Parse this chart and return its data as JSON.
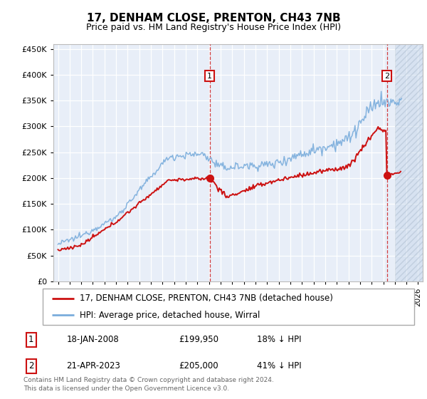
{
  "title": "17, DENHAM CLOSE, PRENTON, CH43 7NB",
  "subtitle": "Price paid vs. HM Land Registry's House Price Index (HPI)",
  "footer": "Contains HM Land Registry data © Crown copyright and database right 2024.\nThis data is licensed under the Open Government Licence v3.0.",
  "legend_line1": "17, DENHAM CLOSE, PRENTON, CH43 7NB (detached house)",
  "legend_line2": "HPI: Average price, detached house, Wirral",
  "annotation1_label": "1",
  "annotation1_date": "18-JAN-2008",
  "annotation1_price": "£199,950",
  "annotation1_hpi": "18% ↓ HPI",
  "annotation2_label": "2",
  "annotation2_date": "21-APR-2023",
  "annotation2_price": "£205,000",
  "annotation2_hpi": "41% ↓ HPI",
  "plot_bg_color": "#e8eef8",
  "red_color": "#cc1111",
  "blue_color": "#7aaddc",
  "ylim": [
    0,
    460000
  ],
  "yticks": [
    0,
    50000,
    100000,
    150000,
    200000,
    250000,
    300000,
    350000,
    400000,
    450000
  ],
  "xlim_start": 1994.6,
  "xlim_end": 2026.4,
  "hatch_start": 2024.0,
  "point1_x": 2008.05,
  "point1_y": 199950,
  "point2_x": 2023.31,
  "point2_y": 205000
}
